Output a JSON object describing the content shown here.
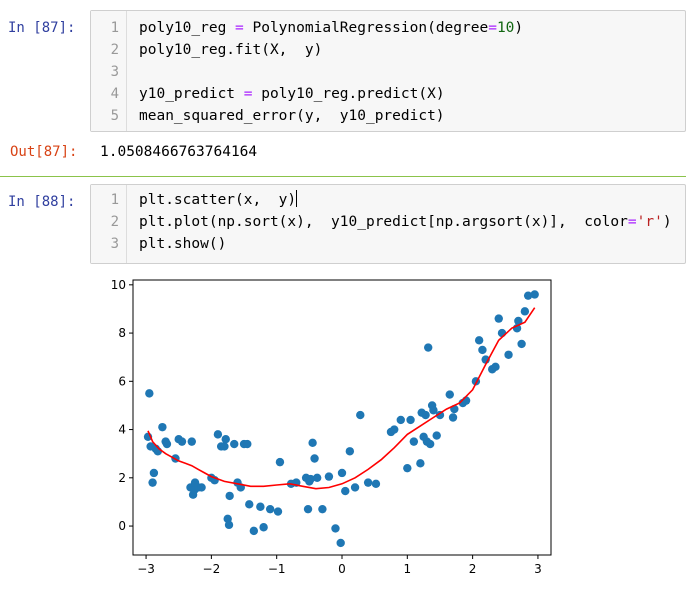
{
  "cells": [
    {
      "prompt": "In  [87]:",
      "lines": [
        {
          "n": "1",
          "a": "poly10_reg ",
          "eq": "=",
          "b": " PolynomialRegression(degree",
          "eq2": "=",
          "num": "10",
          "c": ")"
        },
        {
          "n": "2",
          "text": "poly10_reg.fit(X,  y)"
        },
        {
          "n": "3",
          "text": ""
        },
        {
          "n": "4",
          "a": "y10_predict ",
          "eq": "=",
          "b": " poly10_reg.predict(X)"
        },
        {
          "n": "5",
          "text": "mean_squared_error(y,  y10_predict)"
        }
      ],
      "out_prompt": "Out[87]:",
      "output": "1.0508466763764164"
    },
    {
      "prompt": "In  [88]:",
      "lines": [
        {
          "n": "1",
          "text": "plt.scatter(x,  y)"
        },
        {
          "n": "2",
          "a": "plt.plot(np.sort(x),  y10_predict[np.argsort(x)],  color",
          "eq": "=",
          "str": "'r'",
          "c": ")"
        },
        {
          "n": "3",
          "text": "plt.show()"
        }
      ]
    }
  ],
  "chart_data": {
    "type": "scatter",
    "title": "",
    "xlabel": "",
    "ylabel": "",
    "xlim": [
      -3.2,
      3.2
    ],
    "ylim": [
      -1.2,
      10.2
    ],
    "xticks": [
      -3,
      -2,
      -1,
      0,
      1,
      2,
      3
    ],
    "yticks": [
      0,
      2,
      4,
      6,
      8,
      10
    ],
    "grid": false,
    "colors": {
      "points": "#1f77b4",
      "line": "#ff0000"
    },
    "series": [
      {
        "type": "scatter",
        "x": [
          -2.97,
          -2.95,
          -2.93,
          -2.9,
          -2.88,
          -2.85,
          -2.82,
          -2.75,
          -2.7,
          -2.68,
          -2.55,
          -2.5,
          -2.45,
          -2.32,
          -2.3,
          -2.28,
          -2.26,
          -2.25,
          -2.2,
          -2.15,
          -2.0,
          -1.95,
          -1.9,
          -1.85,
          -1.8,
          -1.78,
          -1.75,
          -1.73,
          -1.72,
          -1.65,
          -1.6,
          -1.55,
          -1.5,
          -1.45,
          -1.42,
          -1.35,
          -1.25,
          -1.2,
          -1.1,
          -0.98,
          -0.95,
          -0.78,
          -0.7,
          -0.55,
          -0.52,
          -0.5,
          -0.48,
          -0.45,
          -0.42,
          -0.38,
          -0.3,
          -0.2,
          -0.1,
          -0.02,
          0.0,
          0.05,
          0.12,
          0.2,
          0.28,
          0.4,
          0.52,
          0.75,
          0.8,
          0.9,
          1.0,
          1.05,
          1.1,
          1.2,
          1.22,
          1.25,
          1.28,
          1.3,
          1.32,
          1.35,
          1.38,
          1.4,
          1.45,
          1.5,
          1.65,
          1.7,
          1.72,
          1.85,
          1.9,
          2.05,
          2.1,
          2.15,
          2.2,
          2.3,
          2.35,
          2.4,
          2.45,
          2.55,
          2.68,
          2.7,
          2.75,
          2.8,
          2.85,
          2.95
        ],
        "y": [
          3.7,
          5.5,
          3.3,
          1.8,
          2.2,
          3.2,
          3.1,
          4.1,
          3.5,
          3.4,
          2.8,
          3.6,
          3.5,
          1.6,
          3.5,
          1.3,
          1.5,
          1.8,
          1.6,
          1.6,
          2.0,
          1.9,
          3.8,
          3.3,
          3.3,
          3.6,
          0.3,
          0.05,
          1.25,
          3.4,
          1.8,
          1.6,
          3.4,
          3.4,
          0.9,
          -0.2,
          0.8,
          -0.05,
          0.7,
          0.6,
          2.65,
          1.75,
          1.8,
          2.0,
          0.7,
          1.85,
          1.95,
          3.45,
          2.8,
          2.0,
          0.7,
          2.05,
          -0.1,
          -0.7,
          2.2,
          1.45,
          3.1,
          1.6,
          4.6,
          1.8,
          1.75,
          3.9,
          4.0,
          4.4,
          2.4,
          4.4,
          3.5,
          2.6,
          4.7,
          3.7,
          4.6,
          3.5,
          7.4,
          3.4,
          5.0,
          4.8,
          3.75,
          4.6,
          5.45,
          4.5,
          4.85,
          5.1,
          5.2,
          6.0,
          7.7,
          7.3,
          6.9,
          6.5,
          6.6,
          8.6,
          8.0,
          7.1,
          8.2,
          8.5,
          7.55,
          8.9,
          9.55,
          9.6
        ]
      },
      {
        "type": "line",
        "x": [
          -2.97,
          -2.9,
          -2.8,
          -2.7,
          -2.6,
          -2.5,
          -2.4,
          -2.3,
          -2.2,
          -2.1,
          -2.0,
          -1.9,
          -1.8,
          -1.6,
          -1.4,
          -1.2,
          -1.0,
          -0.8,
          -0.6,
          -0.4,
          -0.2,
          0.0,
          0.2,
          0.4,
          0.6,
          0.8,
          1.0,
          1.2,
          1.4,
          1.6,
          1.8,
          2.0,
          2.2,
          2.4,
          2.6,
          2.8,
          2.95
        ],
        "y": [
          3.95,
          3.5,
          3.2,
          3.0,
          2.85,
          2.7,
          2.6,
          2.5,
          2.35,
          2.2,
          2.05,
          1.95,
          1.85,
          1.75,
          1.65,
          1.65,
          1.7,
          1.75,
          1.65,
          1.55,
          1.6,
          1.75,
          2.0,
          2.35,
          2.75,
          3.25,
          3.8,
          4.15,
          4.5,
          4.85,
          5.1,
          5.65,
          6.7,
          7.7,
          8.2,
          8.45,
          9.05
        ]
      }
    ]
  }
}
